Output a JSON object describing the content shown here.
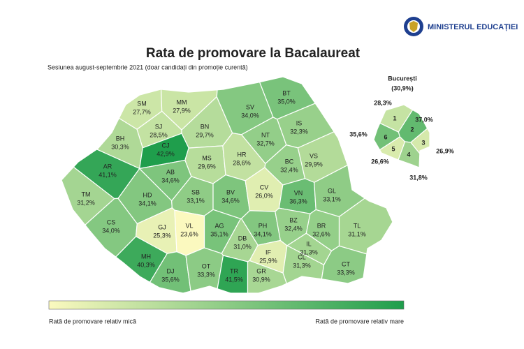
{
  "header": {
    "logo_text": "MINISTERUL EDUCAȚIEI"
  },
  "title": "Rata de promovare la Bacalaureat",
  "subtitle": "Sesiunea august-septembrie 2021 (doar candidați din promoție curentă)",
  "counties": [
    {
      "code": "SM",
      "value": 27.7,
      "label": "27,7%"
    },
    {
      "code": "MM",
      "value": 27.9,
      "label": "27,9%"
    },
    {
      "code": "BT",
      "value": 35.0,
      "label": "35,0%"
    },
    {
      "code": "SJ",
      "value": 28.5,
      "label": "28,5%"
    },
    {
      "code": "BN",
      "value": 29.7,
      "label": "29,7%"
    },
    {
      "code": "SV",
      "value": 34.0,
      "label": "34,0%"
    },
    {
      "code": "IS",
      "value": 32.3,
      "label": "32,3%"
    },
    {
      "code": "BH",
      "value": 30.3,
      "label": "30,3%"
    },
    {
      "code": "CJ",
      "value": 42.9,
      "label": "42,9%"
    },
    {
      "code": "NT",
      "value": 32.7,
      "label": "32,7%"
    },
    {
      "code": "MS",
      "value": 29.6,
      "label": "29,6%"
    },
    {
      "code": "HR",
      "value": 28.6,
      "label": "28,6%"
    },
    {
      "code": "BC",
      "value": 32.4,
      "label": "32,4%"
    },
    {
      "code": "VS",
      "value": 29.9,
      "label": "29,9%"
    },
    {
      "code": "AR",
      "value": 41.1,
      "label": "41,1%"
    },
    {
      "code": "AB",
      "value": 34.6,
      "label": "34,6%"
    },
    {
      "code": "TM",
      "value": 31.2,
      "label": "31,2%"
    },
    {
      "code": "HD",
      "value": 34.1,
      "label": "34,1%"
    },
    {
      "code": "SB",
      "value": 33.1,
      "label": "33,1%"
    },
    {
      "code": "BV",
      "value": 34.6,
      "label": "34,6%"
    },
    {
      "code": "CV",
      "value": 26.0,
      "label": "26,0%"
    },
    {
      "code": "VN",
      "value": 36.3,
      "label": "36,3%"
    },
    {
      "code": "GL",
      "value": 33.1,
      "label": "33,1%"
    },
    {
      "code": "CS",
      "value": 34.0,
      "label": "34,0%"
    },
    {
      "code": "GJ",
      "value": 25.3,
      "label": "25,3%"
    },
    {
      "code": "VL",
      "value": 23.6,
      "label": "23,6%"
    },
    {
      "code": "AG",
      "value": 35.1,
      "label": "35,1%"
    },
    {
      "code": "PH",
      "value": 34.1,
      "label": "34,1%"
    },
    {
      "code": "BZ",
      "value": 32.4,
      "label": "32,4%"
    },
    {
      "code": "BR",
      "value": 32.6,
      "label": "32,6%"
    },
    {
      "code": "TL",
      "value": 31.1,
      "label": "31,1%"
    },
    {
      "code": "DB",
      "value": 31.0,
      "label": "31,0%"
    },
    {
      "code": "MH",
      "value": 40.3,
      "label": "40,3%"
    },
    {
      "code": "IF",
      "value": 25.9,
      "label": "25,9%"
    },
    {
      "code": "IL",
      "value": 31.3,
      "label": "31,3%"
    },
    {
      "code": "DJ",
      "value": 35.6,
      "label": "35,6%"
    },
    {
      "code": "OT",
      "value": 33.3,
      "label": "33,3%"
    },
    {
      "code": "TR",
      "value": 41.5,
      "label": "41,5%"
    },
    {
      "code": "GR",
      "value": 30.9,
      "label": "30,9%"
    },
    {
      "code": "CL",
      "value": 31.3,
      "label": "31,3%"
    },
    {
      "code": "CT",
      "value": 33.3,
      "label": "33,3%"
    }
  ],
  "bucharest": {
    "name": "București",
    "value": 30.9,
    "label": "(30,9%)",
    "sectors": [
      {
        "number": "1",
        "value": 28.3,
        "label": "28,3%"
      },
      {
        "number": "2",
        "value": 37.0,
        "label": "37,0%"
      },
      {
        "number": "3",
        "value": 26.9,
        "label": "26,9%"
      },
      {
        "number": "4",
        "value": 31.8,
        "label": "31,8%"
      },
      {
        "number": "5",
        "value": 26.6,
        "label": "26,6%"
      },
      {
        "number": "6",
        "value": 35.6,
        "label": "35,6%"
      }
    ]
  },
  "legend": {
    "low": "Rată de promovare relativ mică",
    "high": "Rată de promovare relativ mare",
    "colors": [
      "#fbf9bf",
      "#1f9e4c"
    ]
  }
}
